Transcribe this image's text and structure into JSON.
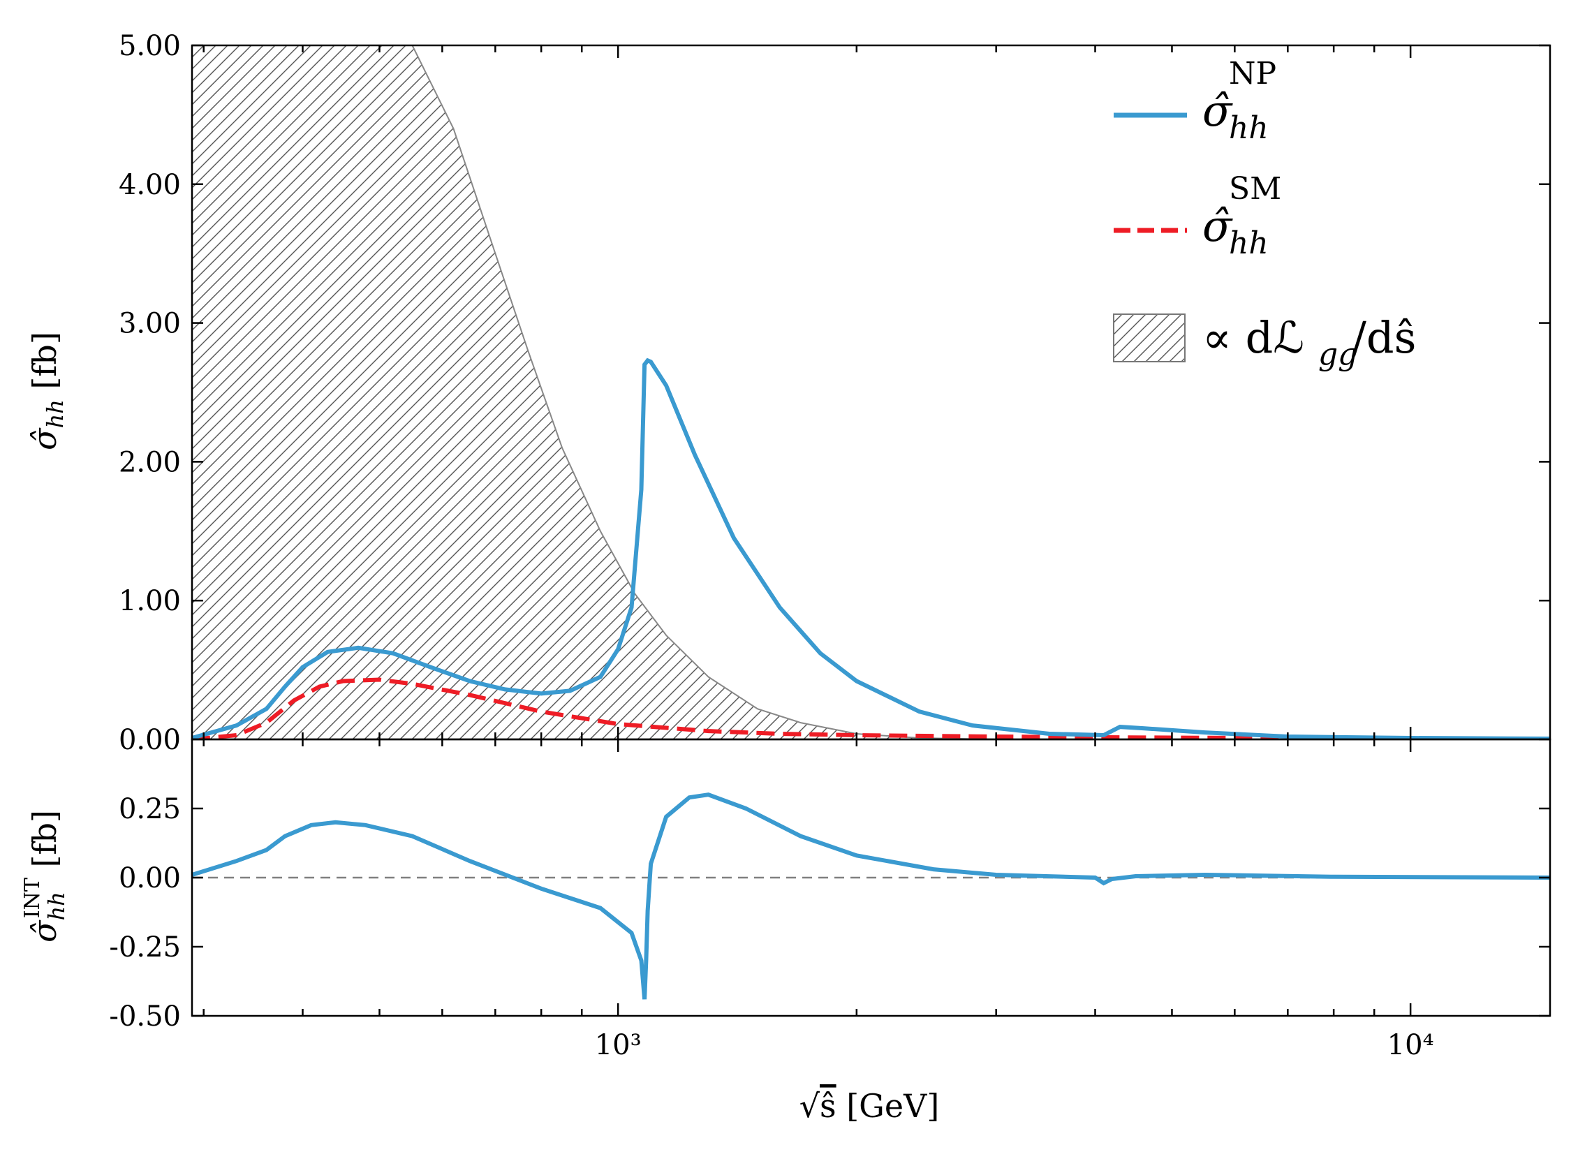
{
  "chart_data": [
    {
      "panel": "upper",
      "type": "line",
      "xlabel": "√ŝ [GeV]",
      "ylabel": "σ̂hh [fb]",
      "xscale": "log",
      "xlim": [
        290,
        15000
      ],
      "ylim": [
        0,
        5
      ],
      "yticks": [
        "0.00",
        "1.00",
        "2.00",
        "3.00",
        "4.00",
        "5.00"
      ],
      "grid": false,
      "legend_position": "top-right",
      "series": [
        {
          "name": "σ̂hh^NP",
          "color": "#3a9ad0",
          "style": "solid",
          "x": [
            290,
            330,
            360,
            380,
            400,
            430,
            470,
            520,
            580,
            650,
            720,
            800,
            870,
            950,
            1000,
            1040,
            1070,
            1080,
            1090,
            1100,
            1150,
            1250,
            1400,
            1600,
            1800,
            2000,
            2400,
            2800,
            3500,
            4100,
            4300,
            4600,
            5500,
            7000,
            10000,
            15000
          ],
          "y": [
            0.01,
            0.1,
            0.22,
            0.38,
            0.52,
            0.63,
            0.66,
            0.62,
            0.52,
            0.42,
            0.36,
            0.33,
            0.35,
            0.45,
            0.65,
            0.95,
            1.8,
            2.7,
            2.73,
            2.72,
            2.55,
            2.05,
            1.45,
            0.95,
            0.62,
            0.42,
            0.2,
            0.1,
            0.04,
            0.03,
            0.09,
            0.08,
            0.05,
            0.02,
            0.01,
            0.005
          ]
        },
        {
          "name": "σ̂hh^SM",
          "color": "#ee1c25",
          "style": "dashed",
          "x": [
            290,
            330,
            360,
            390,
            420,
            450,
            500,
            550,
            650,
            800,
            1000,
            1300,
            1600,
            2000,
            3000,
            4000,
            6000,
            10000,
            15000
          ],
          "y": [
            0.0,
            0.03,
            0.12,
            0.28,
            0.38,
            0.42,
            0.43,
            0.4,
            0.32,
            0.2,
            0.11,
            0.06,
            0.04,
            0.03,
            0.02,
            0.015,
            0.01,
            0.005,
            0.002
          ]
        },
        {
          "name": "∝ dℒgg/dŝ",
          "color": "#808080",
          "style": "hatched-fill",
          "x": [
            290,
            550,
            620,
            700,
            770,
            850,
            950,
            1050,
            1150,
            1300,
            1500,
            1700,
            2000,
            2400,
            3000
          ],
          "y": [
            5.0,
            5.0,
            4.4,
            3.5,
            2.8,
            2.1,
            1.5,
            1.05,
            0.75,
            0.45,
            0.22,
            0.12,
            0.04,
            0.01,
            0.0
          ]
        }
      ]
    },
    {
      "panel": "lower",
      "type": "line",
      "xlabel": "√ŝ [GeV]",
      "ylabel": "σ̂hh^INT [fb]",
      "xscale": "log",
      "xlim": [
        290,
        15000
      ],
      "ylim": [
        -0.5,
        0.5
      ],
      "yticks": [
        "-0.50",
        "-0.25",
        "0.00",
        "0.25"
      ],
      "xticks": [
        "10³",
        "10⁴"
      ],
      "grid": false,
      "reference_line": {
        "y": 0,
        "color": "#808080",
        "style": "dashed"
      },
      "series": [
        {
          "name": "σ̂hh^INT",
          "color": "#3a9ad0",
          "style": "solid",
          "x": [
            290,
            330,
            360,
            380,
            410,
            440,
            480,
            550,
            650,
            800,
            950,
            1040,
            1070,
            1080,
            1085,
            1090,
            1100,
            1150,
            1230,
            1300,
            1450,
            1700,
            2000,
            2500,
            3000,
            4000,
            4100,
            4200,
            4500,
            5500,
            8000,
            15000
          ],
          "y": [
            0.01,
            0.06,
            0.1,
            0.15,
            0.19,
            0.2,
            0.19,
            0.15,
            0.06,
            -0.04,
            -0.11,
            -0.2,
            -0.3,
            -0.44,
            -0.3,
            -0.12,
            0.05,
            0.22,
            0.29,
            0.3,
            0.25,
            0.15,
            0.08,
            0.03,
            0.01,
            0.0,
            -0.02,
            -0.005,
            0.005,
            0.01,
            0.003,
            0.0
          ]
        }
      ]
    }
  ]
}
